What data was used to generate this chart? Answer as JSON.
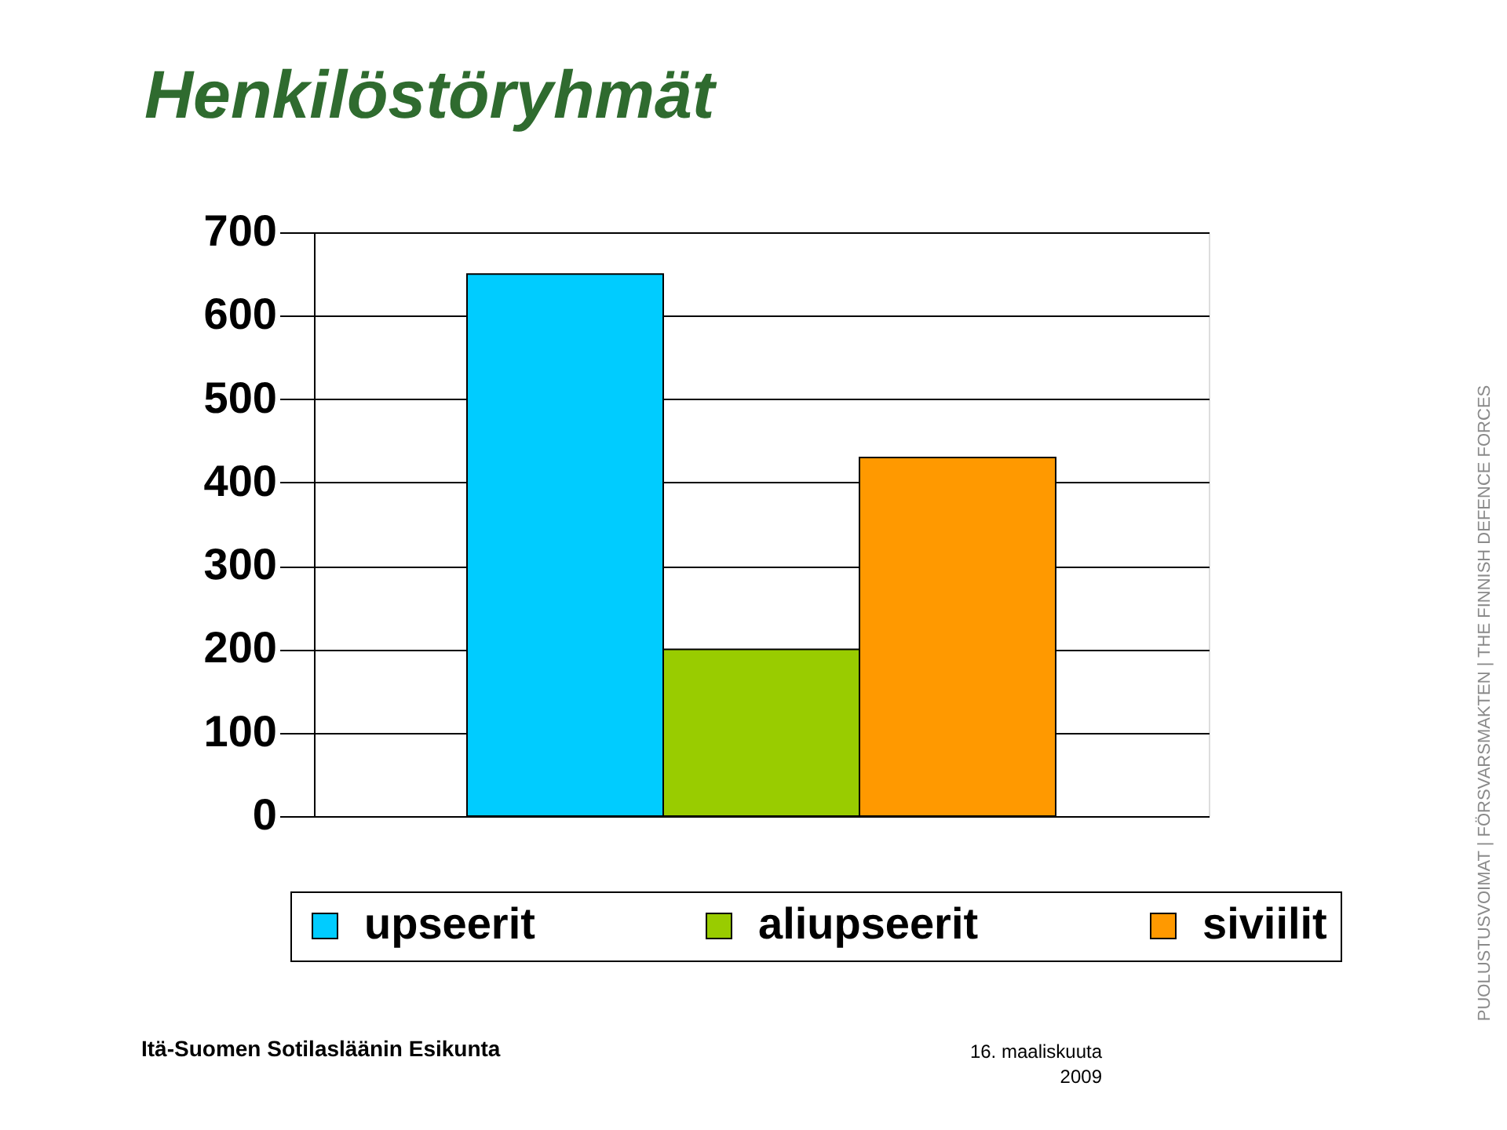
{
  "chart_data": {
    "type": "bar",
    "title": "Henkilöstöryhmät",
    "categories": [
      null
    ],
    "series": [
      {
        "name": "upseerit",
        "color": "#00ccff",
        "values": [
          650
        ]
      },
      {
        "name": "aliupseerit",
        "color": "#99cc00",
        "values": [
          200
        ]
      },
      {
        "name": "siviilit",
        "color": "#ff9900",
        "values": [
          430
        ]
      }
    ],
    "ylim": [
      0,
      700
    ],
    "yticks": [
      0,
      100,
      200,
      300,
      400,
      500,
      600,
      700
    ],
    "grid": "y",
    "legend": "bottom",
    "tick_labels": "y",
    "annotations": [
      "Itä-Suomen Sotilasläänin Esikunta",
      "16. maaliskuuta\n2009",
      "PUOLUSTUSVOIMAT | FÖRSVARSMAKTEN | THE FINNISH DEFENCE FORCES"
    ]
  }
}
